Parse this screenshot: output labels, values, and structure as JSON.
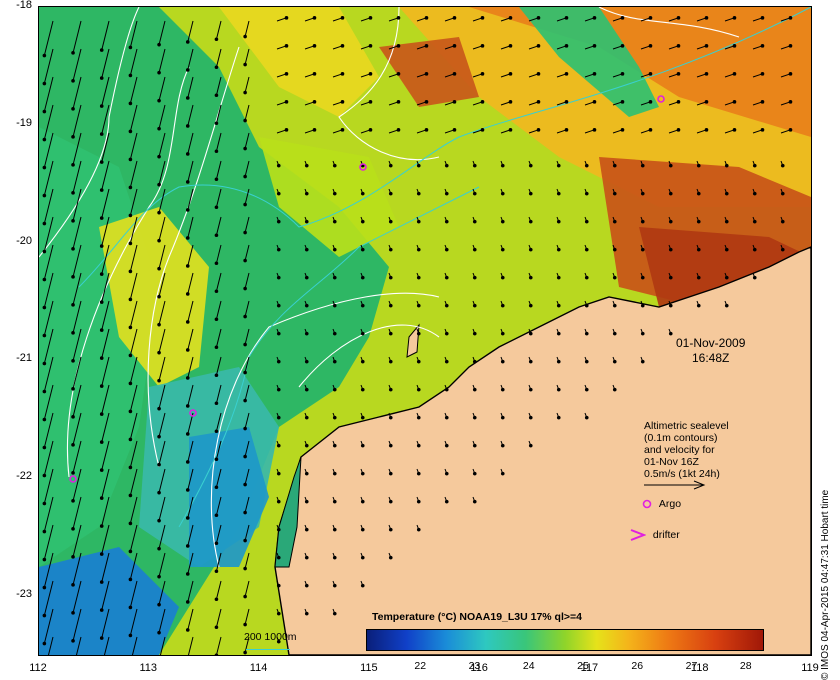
{
  "map": {
    "lon_range": [
      112,
      119
    ],
    "lat_range": [
      -23.5,
      -18
    ],
    "x_ticks": [
      "112",
      "113",
      "114",
      "115",
      "116",
      "117",
      "118",
      "119"
    ],
    "y_ticks": [
      "-18",
      "-19",
      "-20",
      "-21",
      "-22",
      "-23"
    ],
    "land_color": "#f5c99c"
  },
  "timestamp": {
    "date": "01-Nov-2009",
    "time": "16:48Z"
  },
  "legend": {
    "lines": [
      "Altimetric sealevel",
      "(0.1m contours)",
      "and velocity for",
      "01-Nov 16Z",
      "0.5m/s (1kt 24h)"
    ],
    "argo_label": "Argo",
    "drifter_label": "drifter",
    "argo_color": "#e020e0"
  },
  "colorbar": {
    "title": "Temperature (°C) NOAA19_L3U 17% ql>=4",
    "ticks": [
      "22",
      "23",
      "24",
      "25",
      "26",
      "27",
      "28"
    ],
    "range": [
      21,
      28.3
    ]
  },
  "scale": {
    "label": "200  1000m",
    "color": "#3ad0d0"
  },
  "credit": "© IMOS 04-Apr-2015 04:47:31 Hobart time"
}
